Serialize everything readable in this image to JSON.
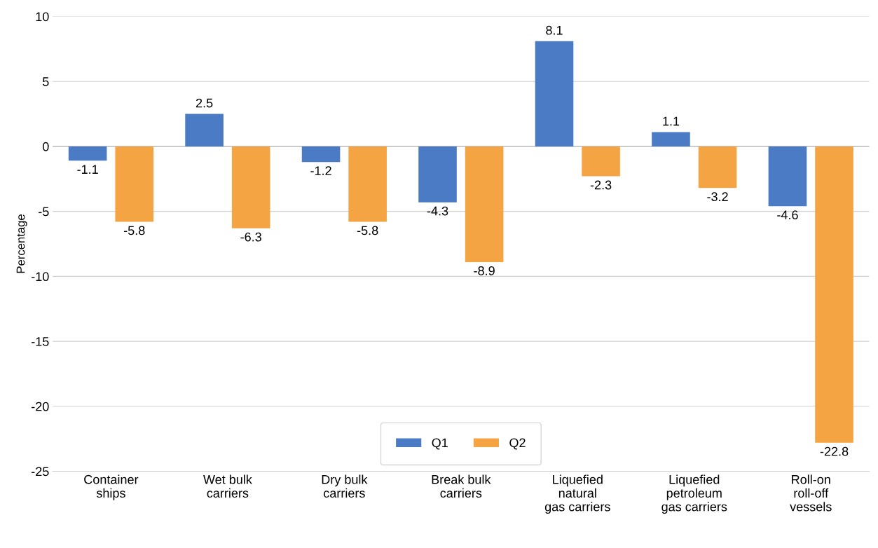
{
  "chart_data": {
    "type": "bar",
    "ylabel": "Percentage",
    "categories": [
      "Container\nships",
      "Wet bulk\ncarriers",
      "Dry bulk\ncarriers",
      "Break bulk\ncarriers",
      "Liquefied\nnatural\ngas carriers",
      "Liquefied\npetroleum\ngas carriers",
      "Roll-on\nroll-off\nvessels"
    ],
    "series": [
      {
        "name": "Q1",
        "color": "#4a7bc4",
        "values": [
          -1.1,
          2.5,
          -1.2,
          -4.3,
          8.1,
          1.1,
          -4.6
        ]
      },
      {
        "name": "Q2",
        "color": "#f5a443",
        "values": [
          -5.8,
          -6.3,
          -5.8,
          -8.9,
          -2.3,
          -3.2,
          -22.8
        ]
      }
    ],
    "ylim": [
      -25,
      10
    ],
    "yticks": [
      -25,
      -20,
      -15,
      -10,
      -5,
      0,
      5,
      10
    ],
    "grid": "y",
    "legend": "bottom",
    "data_labels": true
  }
}
